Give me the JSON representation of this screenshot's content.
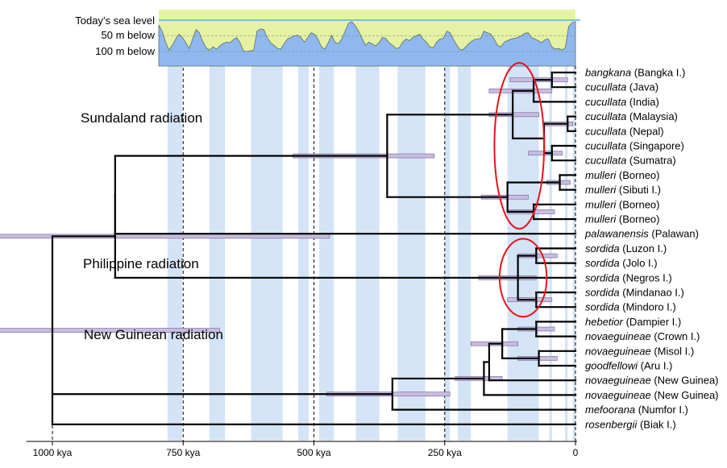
{
  "sea_level": {
    "labels": [
      "Today’s sea level",
      "50 m below",
      "100 m below"
    ],
    "colors": {
      "above": "#e6f2a3",
      "below": "#8fb8ef",
      "today_line": "#4cb3f0"
    },
    "profile_depth_m": [
      15,
      35,
      70,
      95,
      80,
      60,
      45,
      55,
      72,
      90,
      60,
      30,
      40,
      68,
      88,
      95,
      85,
      92,
      82,
      74,
      70,
      72,
      62,
      55,
      72,
      98,
      100,
      98,
      96,
      35,
      28,
      30,
      55,
      72,
      80,
      90,
      92,
      75,
      60,
      55,
      50,
      48,
      55,
      70,
      55,
      40,
      45,
      60,
      85,
      92,
      72,
      48,
      70,
      75,
      60,
      35,
      10,
      5,
      18,
      35,
      58,
      80,
      70,
      75,
      82,
      72,
      55,
      58,
      72,
      80,
      90,
      88,
      70,
      60,
      65,
      55,
      50,
      45,
      60,
      70,
      85,
      88,
      70,
      60,
      58,
      35,
      40,
      62,
      80,
      95,
      92,
      80,
      70,
      62,
      60,
      58,
      35,
      40,
      45,
      60,
      80,
      85,
      70,
      65,
      60,
      58,
      55,
      50,
      42,
      40,
      55,
      60,
      65,
      72,
      62,
      60,
      85,
      92,
      90,
      95,
      88,
      20,
      8,
      5
    ]
  },
  "x_axis": {
    "ticks": [
      {
        "value": 1000,
        "label": "1000 kya"
      },
      {
        "value": 750,
        "label": "750 kya"
      },
      {
        "value": 500,
        "label": "500 kya"
      },
      {
        "value": 250,
        "label": "250 kya"
      },
      {
        "value": 0,
        "label": "0"
      }
    ],
    "dashed_reference_kya": [
      1000,
      750,
      500,
      250
    ],
    "glacial_bands_kya": [
      [
        780,
        752
      ],
      [
        700,
        670
      ],
      [
        620,
        560
      ],
      [
        530,
        510
      ],
      [
        490,
        462
      ],
      [
        420,
        375
      ],
      [
        340,
        287
      ],
      [
        250,
        240
      ],
      [
        225,
        200
      ],
      [
        130,
        70
      ],
      [
        50,
        45
      ],
      [
        20,
        15
      ],
      [
        5,
        0
      ]
    ]
  },
  "clades": [
    {
      "label": "Sundaland radiation"
    },
    {
      "label": "Philippine radiation"
    },
    {
      "label": "New Guinean radiation"
    }
  ],
  "taxa": [
    {
      "species": "bangkana",
      "place": "(Bangka I.)"
    },
    {
      "species": "cucullata",
      "place": "(Java)"
    },
    {
      "species": "cucullata",
      "place": "(India)"
    },
    {
      "species": "cucullata",
      "place": "(Malaysia)"
    },
    {
      "species": "cucullata",
      "place": "(Nepal)"
    },
    {
      "species": "cucullata",
      "place": "(Singapore)"
    },
    {
      "species": "cucullata",
      "place": "(Sumatra)"
    },
    {
      "species": "mulleri",
      "place": "(Borneo)"
    },
    {
      "species": "mulleri",
      "place": "(Sibuti I.)"
    },
    {
      "species": "mulleri",
      "place": "(Borneo)"
    },
    {
      "species": "mulleri",
      "place": "(Borneo)"
    },
    {
      "species": "palawanensis",
      "place": "(Palawan)"
    },
    {
      "species": "sordida",
      "place": "(Luzon I.)"
    },
    {
      "species": "sordida",
      "place": "(Jolo I.)"
    },
    {
      "species": "sordida",
      "place": "(Negros I.)"
    },
    {
      "species": "sordida",
      "place": "(Mindanao I.)"
    },
    {
      "species": "sordida",
      "place": "(Mindoro I.)"
    },
    {
      "species": "hebetior",
      "place": "(Dampier I.)"
    },
    {
      "species": "novaeguineae",
      "place": "(Crown I.)"
    },
    {
      "species": "novaeguineae",
      "place": "(Misol I.)"
    },
    {
      "species": "goodfellowi",
      "place": "(Aru I.)"
    },
    {
      "species": "novaeguineae",
      "place": "(New Guinea)"
    },
    {
      "species": "novaeguineae",
      "place": "(New Guinea)"
    },
    {
      "species": "mefoorana",
      "place": "(Numfor I.)"
    },
    {
      "species": "rosenbergii",
      "place": "(Biak I.)"
    }
  ],
  "tree": {
    "name": "root",
    "age": 1000,
    "ci": [
      1160,
      680
    ],
    "children": [
      {
        "name": "sunda_phil",
        "age": 880,
        "ci": [
          1160,
          470
        ],
        "children": [
          {
            "name": "sunda",
            "age": 880,
            "children": [
              {
                "name": "sunda_core",
                "age": 360,
                "ci": [
                  540,
                  270
                ],
                "children": [
                  {
                    "name": "cuc_grp",
                    "age": 120,
                    "ci": [
                      165,
                      70
                    ],
                    "children": [
                      {
                        "name": "jav_grp",
                        "age": 80,
                        "ci": [
                          165,
                          45
                        ],
                        "children": [
                          {
                            "name": "bk_jv",
                            "age": 45,
                            "ci": [
                              125,
                              15
                            ],
                            "children": [
                              {
                                "leaf": 0
                              },
                              {
                                "leaf": 1
                              }
                            ]
                          },
                          {
                            "leaf": 2
                          }
                        ]
                      },
                      {
                        "name": "mal_grp",
                        "age": 60,
                        "children": [
                          {
                            "name": "my_np",
                            "age": 15,
                            "ci": [
                              60,
                              5
                            ],
                            "children": [
                              {
                                "leaf": 3
                              },
                              {
                                "leaf": 4
                              }
                            ]
                          },
                          {
                            "name": "sg_sm",
                            "age": 45,
                            "ci": [
                              90,
                              25
                            ],
                            "children": [
                              {
                                "leaf": 5
                              },
                              {
                                "leaf": 6
                              }
                            ]
                          }
                        ]
                      }
                    ]
                  },
                  {
                    "name": "mul_grp",
                    "age": 130,
                    "ci": [
                      180,
                      90
                    ],
                    "children": [
                      {
                        "name": "mul_a",
                        "age": 30,
                        "ci": [
                          55,
                          10
                        ],
                        "children": [
                          {
                            "leaf": 7
                          },
                          {
                            "leaf": 8
                          }
                        ]
                      },
                      {
                        "name": "mul_b",
                        "age": 80,
                        "ci": [
                          130,
                          40
                        ],
                        "children": [
                          {
                            "leaf": 9
                          },
                          {
                            "leaf": 10
                          }
                        ]
                      }
                    ]
                  }
                ]
              },
              {
                "leaf": 11
              }
            ]
          },
          {
            "name": "phil",
            "age": 110,
            "ci": [
              185,
              75
            ],
            "children": [
              {
                "name": "ph_a",
                "age": 75,
                "ci": [
                  110,
                  35
                ],
                "children": [
                  {
                    "leaf": 12
                  },
                  {
                    "leaf": 13
                  }
                ]
              },
              {
                "leaf": 14
              },
              {
                "name": "ph_b",
                "age": 75,
                "ci": [
                  130,
                  45
                ],
                "children": [
                  {
                    "leaf": 15
                  },
                  {
                    "leaf": 16
                  }
                ]
              }
            ]
          }
        ]
      },
      {
        "name": "ng",
        "age": 350,
        "ci": [
          475,
          240
        ],
        "children": [
          {
            "name": "ng_a",
            "age": 175,
            "ci": [
              230,
              140
            ],
            "children": [
              {
                "name": "ng_b",
                "age": 165,
                "children": [
                  {
                    "name": "ng_c",
                    "age": 140,
                    "ci": [
                      200,
                      110
                    ],
                    "children": [
                      {
                        "name": "hb_cr",
                        "age": 75,
                        "ci": [
                          110,
                          40
                        ],
                        "children": [
                          {
                            "leaf": 17
                          },
                          {
                            "leaf": 18
                          }
                        ]
                      },
                      {
                        "name": "mi_ar",
                        "age": 70,
                        "ci": [
                          110,
                          35
                        ],
                        "children": [
                          {
                            "leaf": 19
                          },
                          {
                            "leaf": 20
                          }
                        ]
                      }
                    ]
                  },
                  {
                    "leaf": 21
                  }
                ]
              },
              {
                "leaf": 22
              }
            ]
          },
          {
            "leaf": 23
          }
        ]
      },
      {
        "leaf": 24
      }
    ]
  },
  "highlight_ellipses": [
    {
      "clade": "Sundaland radiation",
      "kya_range": [
        155,
        60
      ],
      "taxa_range": [
        0,
        10
      ]
    },
    {
      "clade": "Philippine radiation",
      "kya_range": [
        145,
        55
      ],
      "taxa_range": [
        12,
        16
      ]
    }
  ]
}
